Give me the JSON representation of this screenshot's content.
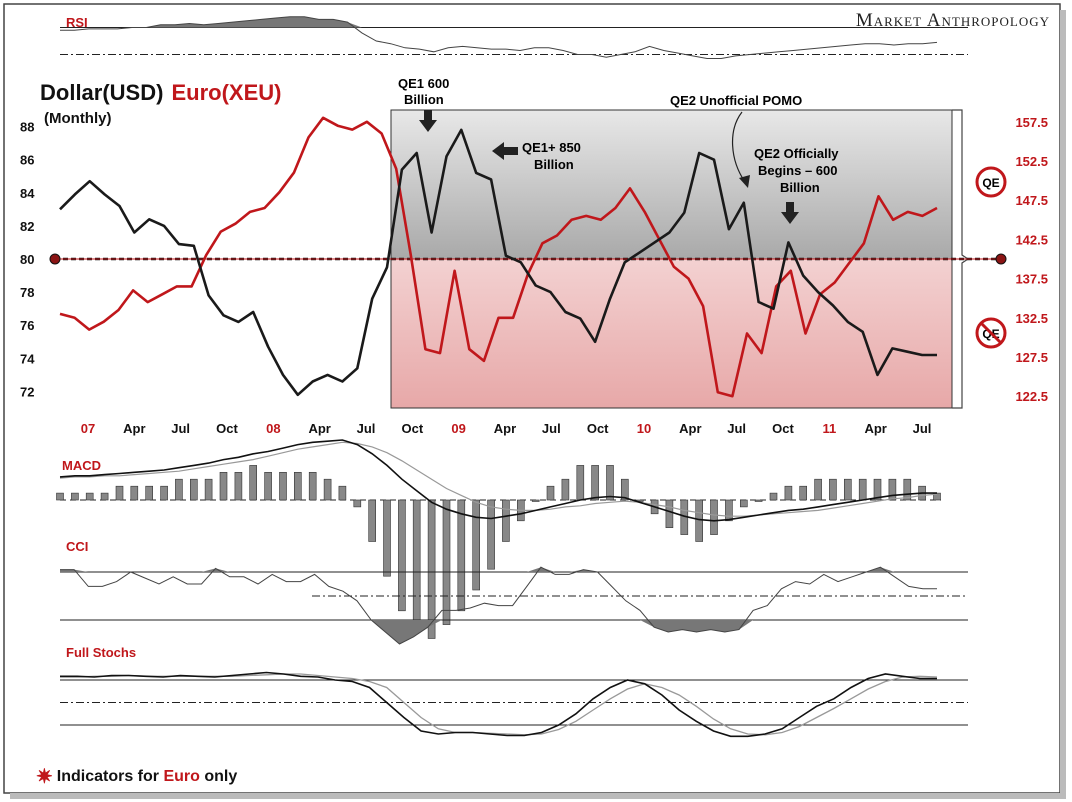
{
  "brand": "Market Anthropology",
  "footer": {
    "prefix": "Indicators for ",
    "highlight": "Euro",
    "suffix": " only"
  },
  "colors": {
    "usd": "#1a1a1a",
    "euro": "#c0171b",
    "qe_band": "#cfcfcf",
    "noqe_band": "#f2c7c7"
  },
  "chart_data": [
    {
      "type": "line",
      "title": "Dollar(USD) Euro(XEU)",
      "title_parts": {
        "usd": "Dollar(USD)",
        "euro": "Euro(XEU)"
      },
      "subtitle": "(Monthly)",
      "x_labels": [
        "07",
        "Apr",
        "Jul",
        "Oct",
        "08",
        "Apr",
        "Jul",
        "Oct",
        "09",
        "Apr",
        "Jul",
        "Oct",
        "10",
        "Apr",
        "Jul",
        "Oct",
        "11",
        "Apr",
        "Jul"
      ],
      "x_label_colors": [
        "euro",
        "black",
        "black",
        "black",
        "euro",
        "black",
        "black",
        "black",
        "euro",
        "black",
        "black",
        "black",
        "euro",
        "black",
        "black",
        "black",
        "euro",
        "black",
        "black"
      ],
      "y_left_ticks": [
        72,
        74,
        76,
        78,
        80,
        82,
        84,
        86,
        88
      ],
      "y_left_range": [
        71,
        89
      ],
      "y_right_ticks": [
        122.5,
        127.5,
        132.5,
        137.5,
        142.5,
        147.5,
        152.5,
        157.5
      ],
      "y_right_range": [
        121.0,
        159.0
      ],
      "reference_level": 80,
      "series": [
        {
          "name": "Dollar(USD)",
          "axis": "left",
          "color": "usd",
          "values": [
            83.0,
            83.9,
            84.7,
            83.9,
            83.2,
            81.6,
            82.4,
            82.0,
            80.9,
            80.8,
            77.8,
            76.6,
            76.2,
            76.8,
            74.7,
            73.0,
            71.8,
            72.6,
            73.0,
            72.6,
            73.4,
            77.6,
            79.5,
            85.4,
            86.4,
            81.6,
            86.2,
            87.8,
            85.2,
            84.8,
            80.2,
            79.8,
            78.4,
            78.0,
            76.8,
            76.4,
            75.0,
            77.6,
            79.8,
            80.4,
            81.0,
            81.6,
            82.8,
            86.4,
            86.0,
            81.8,
            83.4,
            77.4,
            77.0,
            81.0,
            79.0,
            78.0,
            77.2,
            76.2,
            75.6,
            73.0,
            74.6,
            74.4,
            74.2,
            74.2
          ]
        },
        {
          "name": "Euro(XEU)",
          "axis": "right",
          "color": "euro",
          "values": [
            133.0,
            132.5,
            131.0,
            132.0,
            133.5,
            136.0,
            134.5,
            135.5,
            136.5,
            136.5,
            140.5,
            143.5,
            144.5,
            146.0,
            146.5,
            148.5,
            151.0,
            155.5,
            158.0,
            157.0,
            156.5,
            157.5,
            156.0,
            151.5,
            140.5,
            128.5,
            128.0,
            138.5,
            128.5,
            127.0,
            132.5,
            132.5,
            138.0,
            142.0,
            143.0,
            145.0,
            145.5,
            145.0,
            146.5,
            149.0,
            146.0,
            142.5,
            139.0,
            137.5,
            134.0,
            123.0,
            122.5,
            130.5,
            128.0,
            136.5,
            138.5,
            130.5,
            135.5,
            137.0,
            139.5,
            142.0,
            148.0,
            145.0,
            146.0,
            145.5,
            146.5
          ]
        }
      ],
      "annotations": [
        {
          "id": "qe1-600",
          "lines": [
            "QE1 600",
            "Billion"
          ]
        },
        {
          "id": "qe1-850",
          "lines": [
            "QE1+ 850",
            "Billion"
          ]
        },
        {
          "id": "qe2-pomo",
          "lines": [
            "QE2 Unofficial POMO"
          ]
        },
        {
          "id": "qe2-official",
          "lines": [
            "QE2 Officially",
            "Begins – 600",
            "Billion"
          ]
        }
      ],
      "badges": {
        "qe": "QE",
        "no_qe": "QE"
      }
    },
    {
      "type": "line",
      "title": "RSI",
      "series": [
        {
          "name": "RSI",
          "values": [
            38,
            38,
            39,
            39,
            39,
            40,
            40,
            42,
            42,
            43,
            42,
            43,
            44,
            45,
            46,
            47,
            48,
            48,
            46,
            46,
            44,
            36,
            30,
            28,
            25,
            24,
            22,
            25,
            26,
            25,
            24,
            24,
            23,
            25,
            25,
            23,
            20,
            20,
            18,
            20,
            22,
            26,
            23,
            21,
            19,
            17,
            17,
            19,
            20,
            21,
            22,
            23,
            24,
            25,
            26,
            27,
            28,
            28,
            27,
            28,
            28,
            29
          ]
        }
      ],
      "levels": [
        40,
        20
      ]
    },
    {
      "type": "line",
      "title": "MACD",
      "series": [
        {
          "name": "MACD",
          "values": [
            20,
            21,
            21,
            22,
            23,
            24,
            25,
            26,
            28,
            30,
            32,
            35,
            37,
            40,
            42,
            45,
            48,
            50,
            51,
            52,
            48,
            40,
            30,
            18,
            8,
            -2,
            -8,
            -12,
            -15,
            -16,
            -14,
            -12,
            -9,
            -6,
            -3,
            0,
            2,
            3,
            2,
            -2,
            -6,
            -10,
            -14,
            -17,
            -18,
            -17,
            -15,
            -13,
            -11,
            -9,
            -8,
            -6,
            -4,
            -2,
            0,
            2,
            4,
            5,
            6,
            6
          ]
        },
        {
          "name": "Signal",
          "values": [
            19,
            20,
            20,
            21,
            21,
            22,
            23,
            24,
            25,
            27,
            29,
            31,
            33,
            35,
            38,
            41,
            44,
            46,
            48,
            50,
            49,
            46,
            41,
            34,
            26,
            18,
            10,
            4,
            -2,
            -6,
            -8,
            -9,
            -9,
            -8,
            -6,
            -5,
            -3,
            -2,
            -1,
            -2,
            -4,
            -6,
            -9,
            -11,
            -13,
            -14,
            -14,
            -13,
            -12,
            -11,
            -10,
            -9,
            -7,
            -5,
            -3,
            -1,
            1,
            2,
            4,
            5
          ]
        }
      ]
    },
    {
      "type": "line",
      "title": "CCI",
      "series": [
        {
          "name": "CCI",
          "values": [
            110,
            110,
            40,
            40,
            60,
            100,
            75,
            50,
            80,
            50,
            50,
            115,
            80,
            80,
            50,
            90,
            60,
            60,
            90,
            40,
            20,
            -20,
            -100,
            -150,
            -200,
            -170,
            -130,
            -60,
            -60,
            -50,
            -30,
            -40,
            -40,
            40,
            120,
            90,
            90,
            110,
            100,
            40,
            -20,
            -60,
            -130,
            -150,
            -140,
            -150,
            -140,
            -150,
            -140,
            -60,
            -40,
            30,
            60,
            50,
            90,
            60,
            80,
            100,
            120,
            80,
            40,
            30,
            30
          ]
        }
      ],
      "levels": [
        50,
        -100
      ]
    },
    {
      "type": "line",
      "title": "Full Stochs",
      "series": [
        {
          "name": "%K",
          "values": [
            85,
            85,
            84,
            86,
            86,
            85,
            84,
            86,
            85,
            84,
            86,
            88,
            90,
            88,
            85,
            84,
            80,
            78,
            70,
            50,
            30,
            12,
            8,
            10,
            10,
            8,
            6,
            6,
            10,
            20,
            35,
            55,
            70,
            80,
            75,
            60,
            40,
            25,
            12,
            5,
            5,
            8,
            15,
            30,
            45,
            55,
            70,
            82,
            88,
            85,
            82,
            82
          ]
        },
        {
          "name": "%D",
          "values": [
            84,
            84,
            85,
            85,
            86,
            85,
            85,
            85,
            85,
            85,
            85,
            86,
            87,
            88,
            88,
            86,
            84,
            82,
            78,
            70,
            50,
            30,
            15,
            10,
            10,
            9,
            8,
            7,
            8,
            14,
            25,
            40,
            55,
            68,
            75,
            70,
            60,
            45,
            28,
            15,
            8,
            7,
            10,
            18,
            30,
            42,
            55,
            68,
            78,
            84,
            85,
            84
          ]
        }
      ],
      "levels": [
        80,
        50,
        20
      ]
    }
  ]
}
